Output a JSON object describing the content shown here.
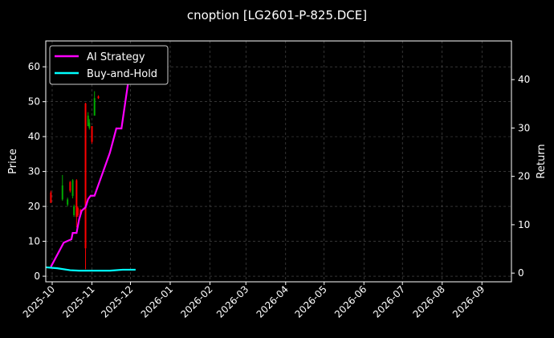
{
  "chart_data": {
    "type": "line",
    "title": "cnoption [LG2601-P-825.DCE]",
    "ylabel": "Price",
    "ylabel_right": "Return",
    "xlim": [
      "2025-09-26",
      "2026-09-24"
    ],
    "ylim": [
      -1.6,
      67.4
    ],
    "ylim_right": [
      -1.8,
      48.0
    ],
    "x_ticks": [
      "2025-10",
      "2025-11",
      "2025-12",
      "2026-01",
      "2026-02",
      "2026-03",
      "2026-04",
      "2026-05",
      "2026-06",
      "2026-07",
      "2026-08",
      "2026-09"
    ],
    "y_ticks": [
      0,
      10,
      20,
      30,
      40,
      50,
      60
    ],
    "y_ticks_right": [
      0,
      10,
      20,
      30,
      40
    ],
    "grid": true,
    "legend_position": "top-left",
    "candles": [
      {
        "date": "2025-09-30",
        "open": 24,
        "close": 21,
        "high": 24.5,
        "low": 21,
        "color": "red"
      },
      {
        "date": "2025-10-09",
        "open": 22,
        "close": 26,
        "high": 29,
        "low": 21.6,
        "color": "green"
      },
      {
        "date": "2025-10-13",
        "open": 20.5,
        "close": 22,
        "high": 22.5,
        "low": 20,
        "color": "green"
      },
      {
        "date": "2025-10-15",
        "open": 27,
        "close": 24.5,
        "high": 27.3,
        "low": 24,
        "color": "red"
      },
      {
        "date": "2025-10-17",
        "open": 23,
        "close": 27.5,
        "high": 27.8,
        "low": 22.3,
        "color": "green"
      },
      {
        "date": "2025-10-18",
        "open": 17.5,
        "close": 20,
        "high": 20.5,
        "low": 17,
        "color": "green"
      },
      {
        "date": "2025-10-20",
        "open": 27.5,
        "close": 17,
        "high": 27.8,
        "low": 14,
        "color": "red"
      },
      {
        "date": "2025-10-21",
        "open": 19.5,
        "close": 17.5,
        "high": 20,
        "low": 17,
        "color": "red"
      },
      {
        "date": "2025-10-23",
        "open": 19,
        "close": 17.5,
        "high": 19.3,
        "low": 17,
        "color": "red"
      },
      {
        "date": "2025-10-27",
        "open": 49.5,
        "close": 8,
        "high": 49.7,
        "low": 2,
        "color": "red"
      },
      {
        "date": "2025-10-29",
        "open": 43,
        "close": 46,
        "high": 47,
        "low": 43,
        "color": "green"
      },
      {
        "date": "2025-10-30",
        "open": 42.5,
        "close": 44,
        "high": 45,
        "low": 42,
        "color": "green"
      },
      {
        "date": "2025-11-01",
        "open": 43,
        "close": 38.5,
        "high": 43,
        "low": 38,
        "color": "red"
      },
      {
        "date": "2025-11-03",
        "open": 46,
        "close": 51,
        "high": 53,
        "low": 46,
        "color": "green"
      },
      {
        "date": "2025-11-06",
        "open": 51.5,
        "close": 51,
        "high": 51.8,
        "low": 50.8,
        "color": "red"
      }
    ],
    "series": [
      {
        "name": "AI Strategy",
        "color": "#ff00ff",
        "axis": "right",
        "x": [
          "2025-09-30",
          "2025-10-10",
          "2025-10-16",
          "2025-10-17",
          "2025-10-20",
          "2025-10-22",
          "2025-10-24",
          "2025-10-27",
          "2025-10-29",
          "2025-10-31",
          "2025-11-03",
          "2025-11-10",
          "2025-11-15",
          "2025-11-20",
          "2025-11-24",
          "2025-11-29",
          "2025-12-02"
        ],
        "values": [
          1.3,
          6.3,
          7.0,
          8.3,
          8.3,
          11.1,
          12.9,
          13.6,
          15.3,
          16.0,
          16.0,
          21.2,
          24.9,
          29.9,
          29.9,
          39.0,
          45.4
        ]
      },
      {
        "name": "Buy-and-Hold",
        "color": "#00ffff",
        "axis": "right",
        "x": [
          "2025-09-26",
          "2025-10-05",
          "2025-10-15",
          "2025-10-22",
          "2025-11-05",
          "2025-11-15",
          "2025-11-25",
          "2025-12-05"
        ],
        "values": [
          1.2,
          1.0,
          0.6,
          0.5,
          0.5,
          0.5,
          0.7,
          0.7
        ]
      }
    ],
    "candle_colors": {
      "red": "#ff0000",
      "green": "#00aa00"
    }
  }
}
